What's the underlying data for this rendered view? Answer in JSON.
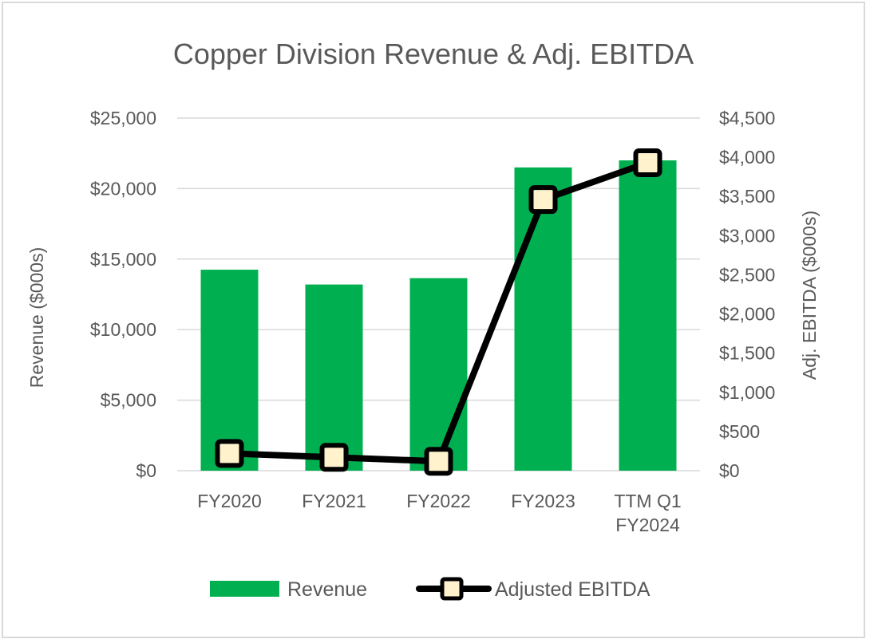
{
  "chart_data": {
    "type": "bar",
    "title": "Copper Division Revenue & Adj. EBITDA",
    "categories": [
      [
        "FY2020"
      ],
      [
        "FY2021"
      ],
      [
        "FY2022"
      ],
      [
        "FY2023"
      ],
      [
        "TTM Q1",
        "FY2024"
      ]
    ],
    "series": [
      {
        "name": "Revenue",
        "type": "bar",
        "axis": "left",
        "color": "#00b050",
        "values": [
          14250,
          13200,
          13650,
          21500,
          22000
        ]
      },
      {
        "name": "Adjusted EBITDA",
        "type": "line",
        "axis": "right",
        "color": "#000000",
        "marker_fill": "#fff2cc",
        "values": [
          220,
          170,
          120,
          3460,
          3930
        ]
      }
    ],
    "ylabel_left": "Revenue ($000s)",
    "ylabel_right": "Adj. EBITDA ($000s)",
    "ylim_left": [
      0,
      25000
    ],
    "ylim_right": [
      0,
      4500
    ],
    "yticks_left": [
      "$0",
      "$5,000",
      "$10,000",
      "$15,000",
      "$20,000",
      "$25,000"
    ],
    "yticks_right": [
      "$0",
      "$500",
      "$1,000",
      "$1,500",
      "$2,000",
      "$2,500",
      "$3,000",
      "$3,500",
      "$4,000",
      "$4,500"
    ],
    "grid": true,
    "legend": "bottom"
  }
}
